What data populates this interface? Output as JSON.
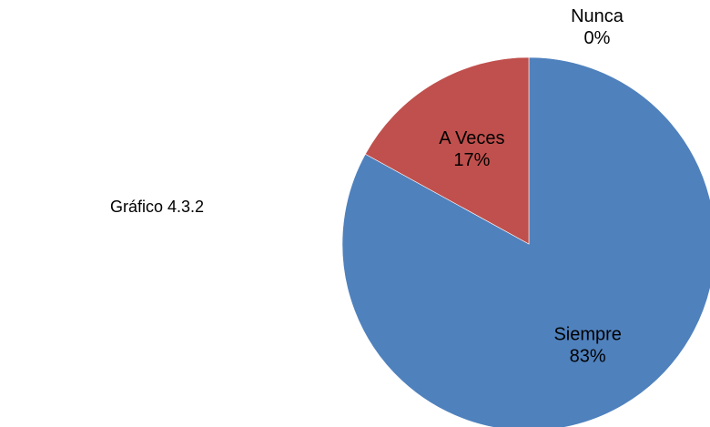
{
  "caption": "Gráfico 4.3.2",
  "chart_data": {
    "type": "pie",
    "title": "",
    "slices": [
      {
        "label": "Siempre",
        "percent_label": "83%",
        "value": 83,
        "color": "#4F81BD"
      },
      {
        "label": "A Veces",
        "percent_label": "17%",
        "value": 17,
        "color": "#C0504D"
      },
      {
        "label": "Nunca",
        "percent_label": "0%",
        "value": 0,
        "color": "#9BBB59"
      }
    ],
    "legend": "none",
    "labels_position": "inside-and-outside"
  }
}
